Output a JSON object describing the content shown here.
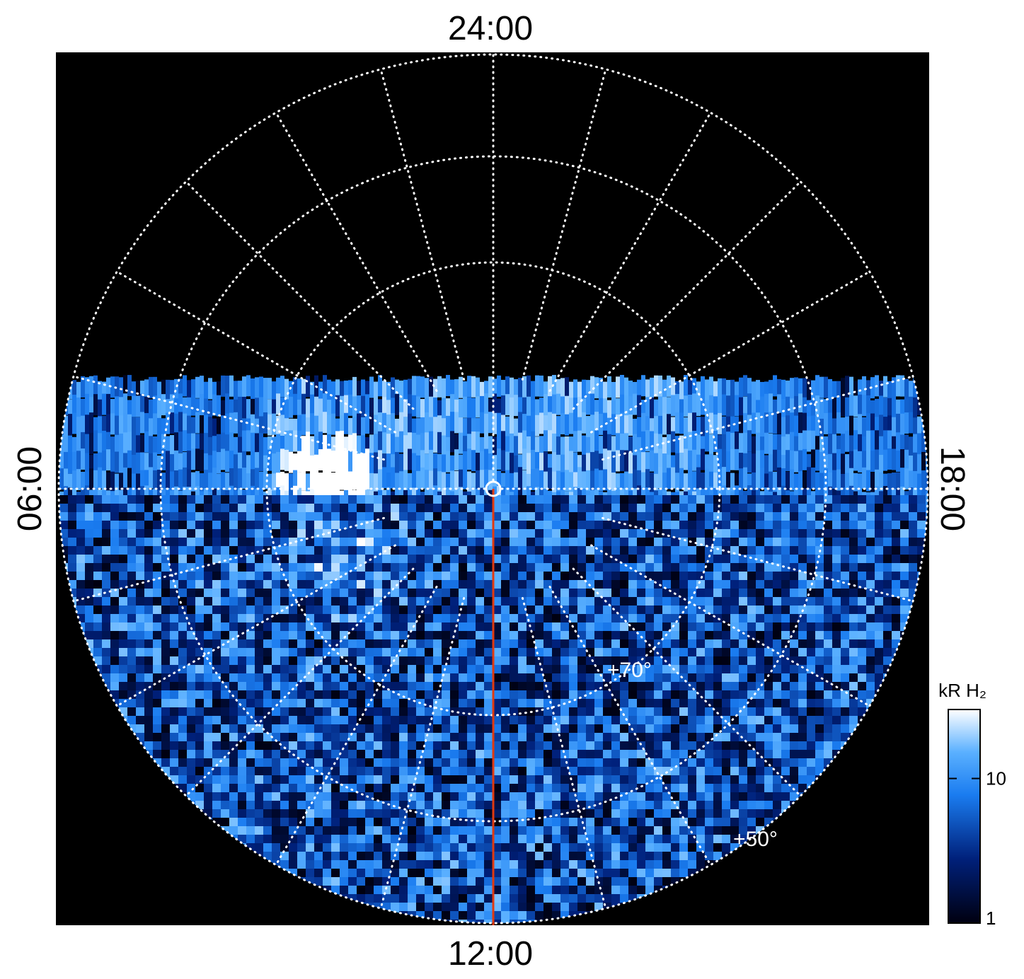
{
  "chart_data": {
    "type": "polar-map",
    "time_labels": [
      "24:00",
      "06:00",
      "12:00",
      "18:00"
    ],
    "latitude_labels": [
      "+70°",
      "+50°"
    ],
    "colorbar": {
      "label": "kR H₂",
      "scale": "log",
      "lim": [
        1,
        30
      ],
      "ticks": [
        1,
        10
      ]
    }
  }
}
